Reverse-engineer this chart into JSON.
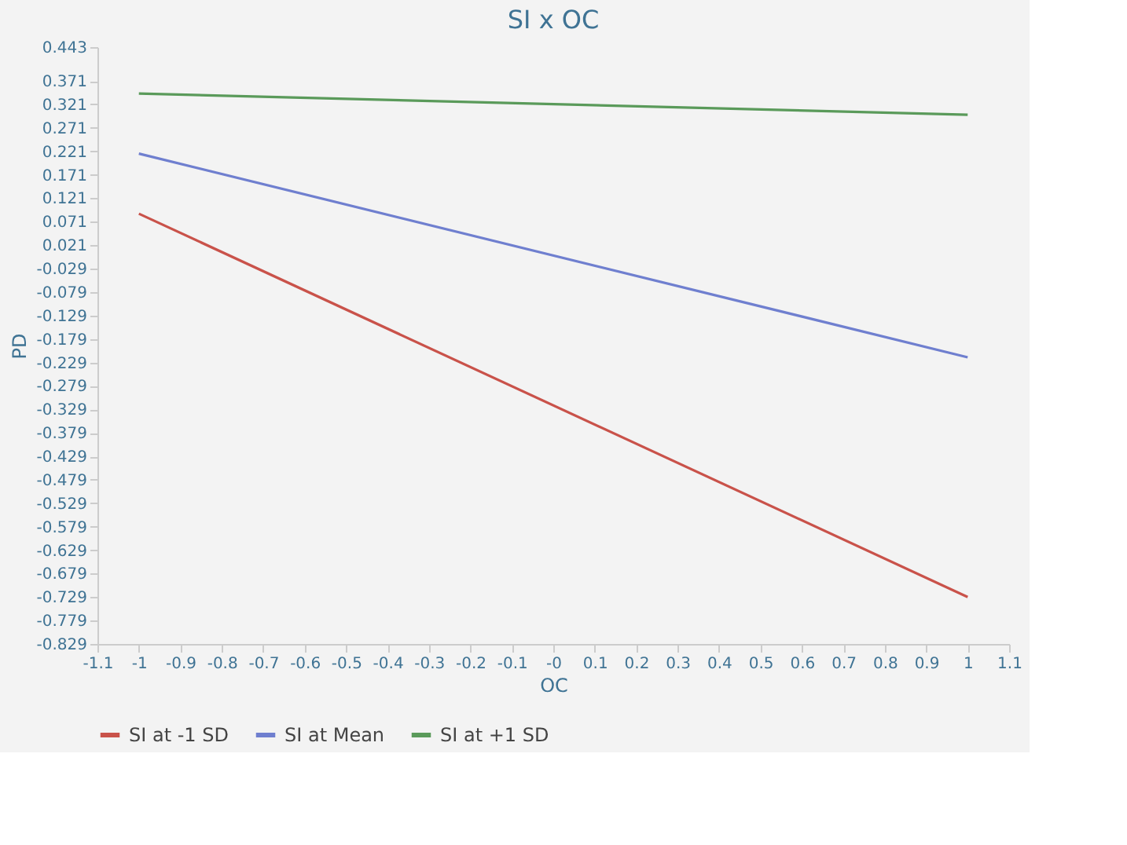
{
  "chart_data": {
    "type": "line",
    "title": "SI x OC",
    "xlabel": "OC",
    "ylabel": "PD",
    "x": [
      -1,
      1
    ],
    "series": [
      {
        "name": "SI at -1 SD",
        "color": "#c9524a",
        "values": [
          0.088,
          -0.729
        ]
      },
      {
        "name": "SI at Mean",
        "color": "#6f7fcf",
        "values": [
          0.216,
          -0.218
        ]
      },
      {
        "name": "SI at +1 SD",
        "color": "#5a9a5a",
        "values": [
          0.344,
          0.299
        ]
      }
    ],
    "xlim": [
      -1.1,
      1.1
    ],
    "xticks": [
      -1.1,
      -1,
      -0.9,
      -0.8,
      -0.7,
      -0.6,
      -0.5,
      -0.4,
      -0.3,
      -0.2,
      -0.1,
      {
        "value": 0,
        "label": "-0"
      },
      0.1,
      0.2,
      0.3,
      0.4,
      0.5,
      0.6,
      0.7,
      0.8,
      0.9,
      1,
      1.1
    ],
    "ylim": [
      -0.829,
      0.443
    ],
    "yticks": [
      -0.829,
      -0.779,
      -0.729,
      -0.679,
      -0.629,
      -0.579,
      -0.529,
      -0.479,
      -0.429,
      -0.379,
      -0.329,
      -0.279,
      -0.229,
      -0.179,
      -0.129,
      -0.079,
      -0.029,
      0.021,
      0.071,
      0.121,
      0.171,
      0.221,
      0.271,
      0.321,
      0.371,
      0.443
    ],
    "grid": false,
    "legend": "bottom",
    "marker": "none",
    "line_style": "solid"
  }
}
